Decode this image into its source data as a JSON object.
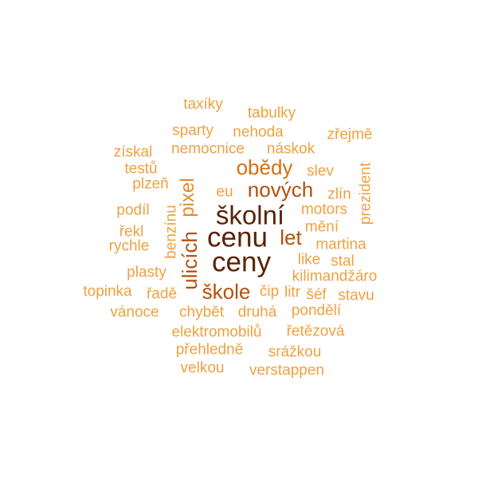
{
  "palette": {
    "lightest": "#f0a141",
    "light": "#e58a26",
    "medium": "#d46f12",
    "dark": "#b4500a",
    "darker": "#8c3508",
    "darkest": "#5b2306"
  },
  "words": [
    {
      "text": "taxíky"
    },
    {
      "text": "tabulky"
    },
    {
      "text": "sparty"
    },
    {
      "text": "nehoda"
    },
    {
      "text": "zřejmě"
    },
    {
      "text": "získal"
    },
    {
      "text": "nemocnice"
    },
    {
      "text": "náskok"
    },
    {
      "text": "testů"
    },
    {
      "text": "obědy"
    },
    {
      "text": "slev"
    },
    {
      "text": "plzeň"
    },
    {
      "text": "pixel"
    },
    {
      "text": "eu"
    },
    {
      "text": "nových"
    },
    {
      "text": "zlín"
    },
    {
      "text": "prezident"
    },
    {
      "text": "podíl"
    },
    {
      "text": "benzínu"
    },
    {
      "text": "školní"
    },
    {
      "text": "motors"
    },
    {
      "text": "řekl"
    },
    {
      "text": "cenu"
    },
    {
      "text": "let"
    },
    {
      "text": "mění"
    },
    {
      "text": "rychle"
    },
    {
      "text": "ulicích"
    },
    {
      "text": "martina"
    },
    {
      "text": "ceny"
    },
    {
      "text": "like"
    },
    {
      "text": "stal"
    },
    {
      "text": "plasty"
    },
    {
      "text": "kilimandžáro"
    },
    {
      "text": "škole"
    },
    {
      "text": "čip"
    },
    {
      "text": "litr"
    },
    {
      "text": "topinka"
    },
    {
      "text": "řadě"
    },
    {
      "text": "šéf"
    },
    {
      "text": "stavu"
    },
    {
      "text": "vánoce"
    },
    {
      "text": "chybět"
    },
    {
      "text": "druhá"
    },
    {
      "text": "pondělí"
    },
    {
      "text": "elektromobilů"
    },
    {
      "text": "řetězová"
    },
    {
      "text": "přehledně"
    },
    {
      "text": "srážkou"
    },
    {
      "text": "velkou"
    },
    {
      "text": "verstappen"
    }
  ]
}
